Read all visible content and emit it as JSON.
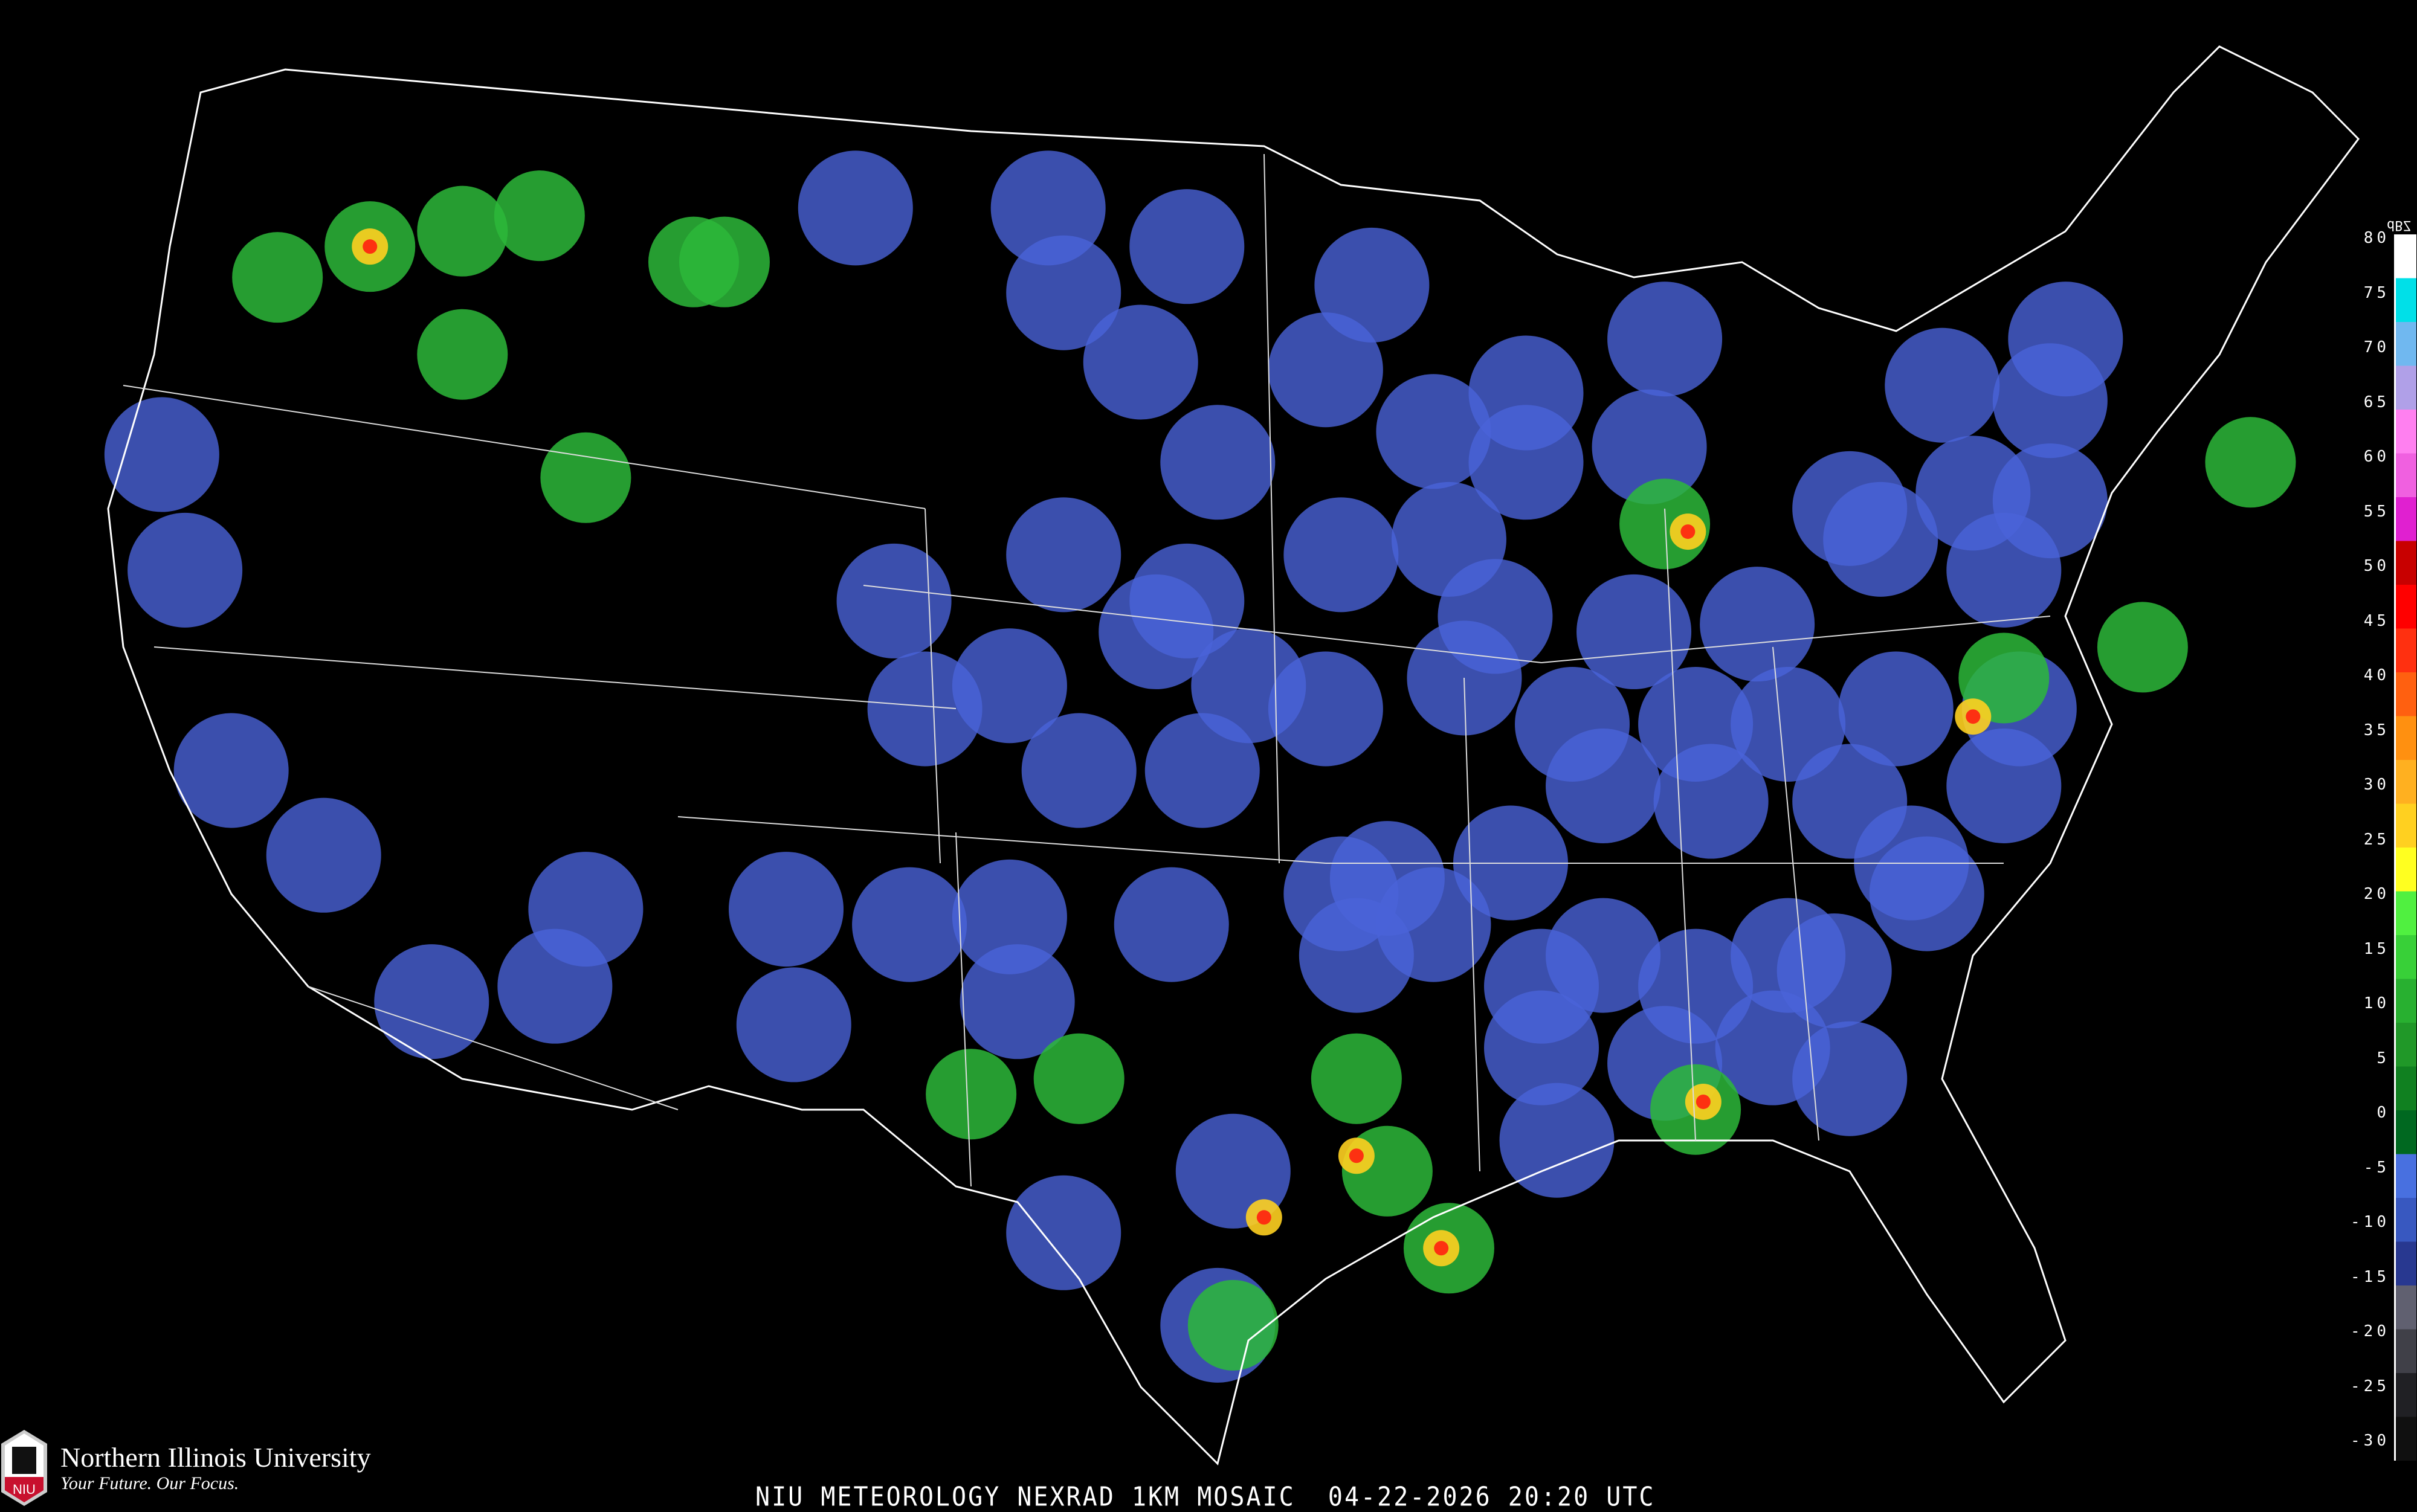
{
  "caption": "NIU METEOROLOGY NEXRAD 1KM MOSAIC  04-22-2026 20:20 UTC",
  "logo": {
    "name": "Northern Illinois University",
    "tagline": "Your Future. Our Focus.",
    "mark_text": "NIU"
  },
  "legend": {
    "unit": "dBZ",
    "labels": [
      "80",
      "75",
      "70",
      "65",
      "60",
      "55",
      "50",
      "45",
      "40",
      "35",
      "30",
      "25",
      "20",
      "15",
      "10",
      "5",
      "0",
      "-5",
      "-10",
      "-15",
      "-20",
      "-25",
      "-30"
    ],
    "colors": [
      "#ffffff",
      "#00e0e8",
      "#70b8f0",
      "#b0a0e8",
      "#ff80f0",
      "#f060e0",
      "#e020d0",
      "#c80000",
      "#ff0000",
      "#ff3010",
      "#ff6010",
      "#ff9010",
      "#ffb020",
      "#ffd020",
      "#ffff20",
      "#50f040",
      "#38d038",
      "#28b030",
      "#209828",
      "#108020",
      "#006820",
      "#4870e0",
      "#3858c0",
      "#283890",
      "#606070",
      "#404048",
      "#202024",
      "#101010"
    ]
  },
  "colors": {
    "background": "#000000",
    "borders": "#ffffff",
    "echo_weak": "#4a63d8",
    "echo_moderate": "#2db83a",
    "echo_strong": "#ffd020",
    "echo_severe": "#ff2010"
  }
}
